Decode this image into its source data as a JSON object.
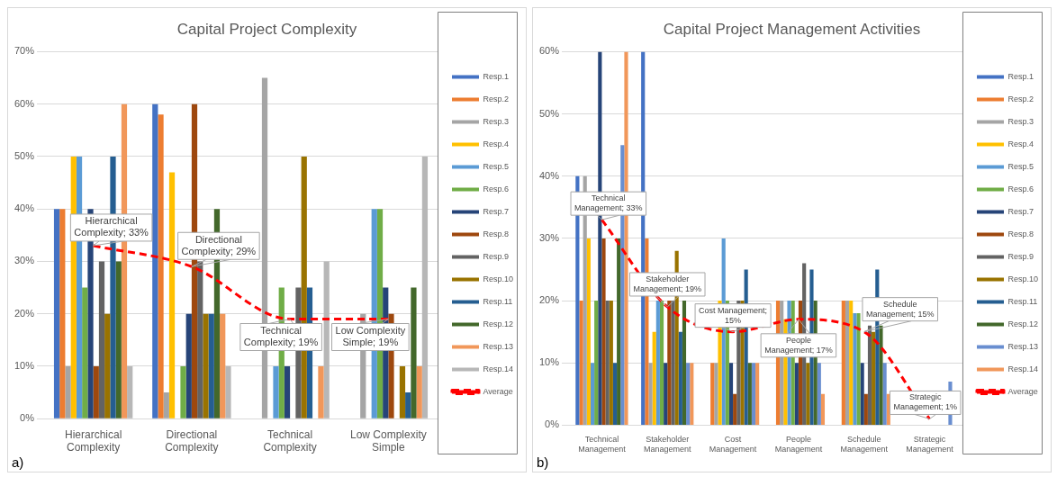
{
  "chart_data": [
    {
      "type": "bar",
      "title": "Capital Project Complexity",
      "categories": [
        "Hierarchical Complexity",
        "Directional Complexity",
        "Technical Complexity",
        "Low Complexity Simple"
      ],
      "ylim": [
        0,
        70
      ],
      "yticks": [
        {
          "value": 0,
          "label": "0%"
        },
        {
          "value": 10,
          "label": "10%"
        },
        {
          "value": 20,
          "label": "20%"
        },
        {
          "value": 30,
          "label": "30%"
        },
        {
          "value": 40,
          "label": "40%"
        },
        {
          "value": 50,
          "label": "50%"
        },
        {
          "value": 60,
          "label": "60%"
        },
        {
          "value": 70,
          "label": "70%"
        }
      ],
      "grid": "y",
      "legend": "right",
      "series": [
        {
          "name": "Resp.1",
          "color": "#4472c4",
          "values": [
            40,
            60,
            0,
            0
          ]
        },
        {
          "name": "Resp.2",
          "color": "#ed7d31",
          "values": [
            40,
            58,
            0,
            0
          ]
        },
        {
          "name": "Resp.3",
          "color": "#a5a5a5",
          "values": [
            10,
            5,
            65,
            20
          ]
        },
        {
          "name": "Resp.4",
          "color": "#ffc000",
          "values": [
            50,
            47,
            0,
            0
          ]
        },
        {
          "name": "Resp.5",
          "color": "#5b9bd5",
          "values": [
            50,
            0,
            10,
            40
          ]
        },
        {
          "name": "Resp.6",
          "color": "#70ad47",
          "values": [
            25,
            10,
            25,
            40
          ]
        },
        {
          "name": "Resp.7",
          "color": "#264478",
          "values": [
            40,
            20,
            10,
            25
          ]
        },
        {
          "name": "Resp.8",
          "color": "#9e480e",
          "values": [
            10,
            60,
            0,
            20
          ]
        },
        {
          "name": "Resp.9",
          "color": "#636363",
          "values": [
            30,
            30,
            25,
            0
          ]
        },
        {
          "name": "Resp.10",
          "color": "#997300",
          "values": [
            20,
            20,
            50,
            10
          ]
        },
        {
          "name": "Resp.11",
          "color": "#255e91",
          "values": [
            50,
            20,
            25,
            5
          ]
        },
        {
          "name": "Resp.12",
          "color": "#43682b",
          "values": [
            30,
            40,
            0,
            25
          ]
        },
        {
          "name": "Resp.13",
          "color": "#f1975a",
          "values": [
            60,
            20,
            10,
            10
          ]
        },
        {
          "name": "Resp.14",
          "color": "#b7b7b7",
          "values": [
            10,
            10,
            30,
            50
          ]
        },
        {
          "name": "Average",
          "type": "line",
          "color": "#ff0000",
          "line_style": "dashed",
          "marker": "none",
          "values": [
            33,
            29,
            19,
            19
          ]
        }
      ],
      "annotations": [
        {
          "text": "Hierarchical Complexity; 33%",
          "x": "Hierarchical Complexity",
          "y": 33
        },
        {
          "text": "Directional Complexity; 29%",
          "x": "Directional Complexity",
          "y": 29
        },
        {
          "text": "Technical Complexity; 19%",
          "x": "Technical Complexity",
          "y": 19
        },
        {
          "text": "Low Complexity Simple; 19%",
          "x": "Low Complexity Simple",
          "y": 19
        },
        "a)"
      ]
    },
    {
      "type": "bar",
      "title": "Capital Project Management Activities",
      "categories": [
        "Technical Management",
        "Stakeholder Management",
        "Cost Management",
        "People Management",
        "Schedule Management",
        "Strategic Management"
      ],
      "ylim": [
        0,
        60
      ],
      "yticks": [
        {
          "value": 0,
          "label": "0%"
        },
        {
          "value": 10,
          "label": "10%"
        },
        {
          "value": 20,
          "label": "20%"
        },
        {
          "value": 30,
          "label": "30%"
        },
        {
          "value": 40,
          "label": "40%"
        },
        {
          "value": 50,
          "label": "50%"
        },
        {
          "value": 60,
          "label": "60%"
        }
      ],
      "grid": "y",
      "legend": "right",
      "series": [
        {
          "name": "Resp.1",
          "color": "#4472c4",
          "values": [
            40,
            60,
            0,
            0,
            0,
            0
          ]
        },
        {
          "name": "Resp.2",
          "color": "#ed7d31",
          "values": [
            20,
            30,
            10,
            20,
            20,
            0
          ]
        },
        {
          "name": "Resp.3",
          "color": "#a5a5a5",
          "values": [
            40,
            10,
            10,
            20,
            20,
            0
          ]
        },
        {
          "name": "Resp.4",
          "color": "#ffc000",
          "values": [
            30,
            15,
            20,
            17,
            20,
            0
          ]
        },
        {
          "name": "Resp.5",
          "color": "#5b9bd5",
          "values": [
            10,
            20,
            30,
            20,
            18,
            0
          ]
        },
        {
          "name": "Resp.6",
          "color": "#70ad47",
          "values": [
            20,
            20,
            20,
            20,
            18,
            0
          ]
        },
        {
          "name": "Resp.7",
          "color": "#264478",
          "values": [
            60,
            10,
            10,
            10,
            10,
            0
          ]
        },
        {
          "name": "Resp.8",
          "color": "#9e480e",
          "values": [
            30,
            20,
            5,
            20,
            5,
            0
          ]
        },
        {
          "name": "Resp.9",
          "color": "#636363",
          "values": [
            20,
            20,
            20,
            26,
            16,
            0
          ]
        },
        {
          "name": "Resp.10",
          "color": "#997300",
          "values": [
            20,
            28,
            20,
            10,
            15,
            0
          ]
        },
        {
          "name": "Resp.11",
          "color": "#255e91",
          "values": [
            10,
            15,
            25,
            25,
            25,
            0
          ]
        },
        {
          "name": "Resp.12",
          "color": "#43682b",
          "values": [
            30,
            20,
            10,
            20,
            16,
            0
          ]
        },
        {
          "name": "Resp.13",
          "color": "#698ed0",
          "values": [
            45,
            10,
            10,
            10,
            10,
            7
          ]
        },
        {
          "name": "Resp.14",
          "color": "#f1975a",
          "values": [
            60,
            10,
            10,
            5,
            5,
            0
          ]
        },
        {
          "name": "Average",
          "type": "line",
          "color": "#ff0000",
          "line_style": "dashed",
          "marker": "none",
          "values": [
            33,
            19,
            15,
            17,
            15,
            1
          ]
        }
      ],
      "annotations": [
        {
          "text": "Technical Management; 33%",
          "x": "Technical Management",
          "y": 33
        },
        {
          "text": "Stakeholder Management; 19%",
          "x": "Stakeholder Management",
          "y": 19
        },
        {
          "text": "Cost Management; 15%",
          "x": "Cost Management",
          "y": 15
        },
        {
          "text": "People Management; 17%",
          "x": "People Management",
          "y": 17
        },
        {
          "text": "Schedule Management; 15%",
          "x": "Schedule Management",
          "y": 15
        },
        {
          "text": "Strategic Management; 1%",
          "x": "Strategic Management",
          "y": 1
        },
        "b)"
      ]
    }
  ]
}
